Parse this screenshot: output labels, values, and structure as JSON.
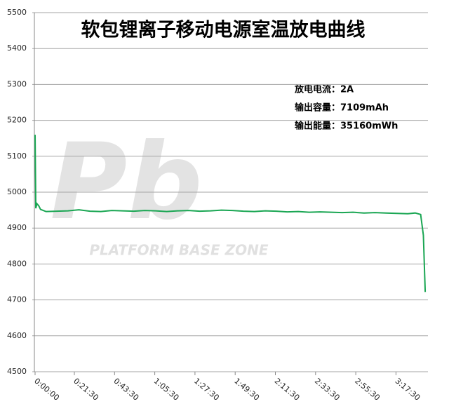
{
  "chart_data": {
    "type": "line",
    "title": "软包锂离子移动电源室温放电曲线",
    "annotations": [
      "放电电流：2A",
      "输出容量：7109mAh",
      "输出能量：35160mWh"
    ],
    "watermark": {
      "logo": "Pb",
      "text": "PLATFORM BASE ZONE"
    },
    "x": [
      0,
      0.4,
      1,
      2,
      3,
      6,
      12,
      18,
      24,
      30,
      36,
      42,
      48,
      54,
      60,
      66,
      72,
      78,
      84,
      90,
      96,
      102,
      108,
      114,
      120,
      126,
      132,
      138,
      144,
      150,
      156,
      162,
      168,
      174,
      180,
      186,
      192,
      198,
      204,
      208,
      211,
      212.5,
      213.5
    ],
    "series": [
      {
        "color": "#1aa653",
        "values": [
          5160,
          4955,
          4968,
          4962,
          4952,
          4946,
          4947,
          4948,
          4951,
          4947,
          4946,
          4949,
          4948,
          4947,
          4949,
          4948,
          4946,
          4948,
          4949,
          4947,
          4948,
          4950,
          4949,
          4947,
          4946,
          4948,
          4947,
          4945,
          4946,
          4944,
          4945,
          4944,
          4943,
          4944,
          4942,
          4943,
          4942,
          4941,
          4940,
          4942,
          4938,
          4880,
          4722
        ]
      }
    ],
    "xlim": [
      0,
      215
    ],
    "xticks": [
      {
        "value": 0,
        "label": "0:00:00"
      },
      {
        "value": 21.5,
        "label": "0:21:30"
      },
      {
        "value": 43.5,
        "label": "0:43:30"
      },
      {
        "value": 65.5,
        "label": "1:05:30"
      },
      {
        "value": 87.5,
        "label": "1:27:30"
      },
      {
        "value": 109.5,
        "label": "1:49:30"
      },
      {
        "value": 131.5,
        "label": "2:11:30"
      },
      {
        "value": 153.5,
        "label": "2:33:30"
      },
      {
        "value": 175.5,
        "label": "2:55:30"
      },
      {
        "value": 197.5,
        "label": "3:17:30"
      }
    ],
    "ylim": [
      4500,
      5500
    ],
    "yticks": [
      4500,
      4600,
      4700,
      4800,
      4900,
      5000,
      5100,
      5200,
      5300,
      5400,
      5500
    ],
    "grid": true
  }
}
